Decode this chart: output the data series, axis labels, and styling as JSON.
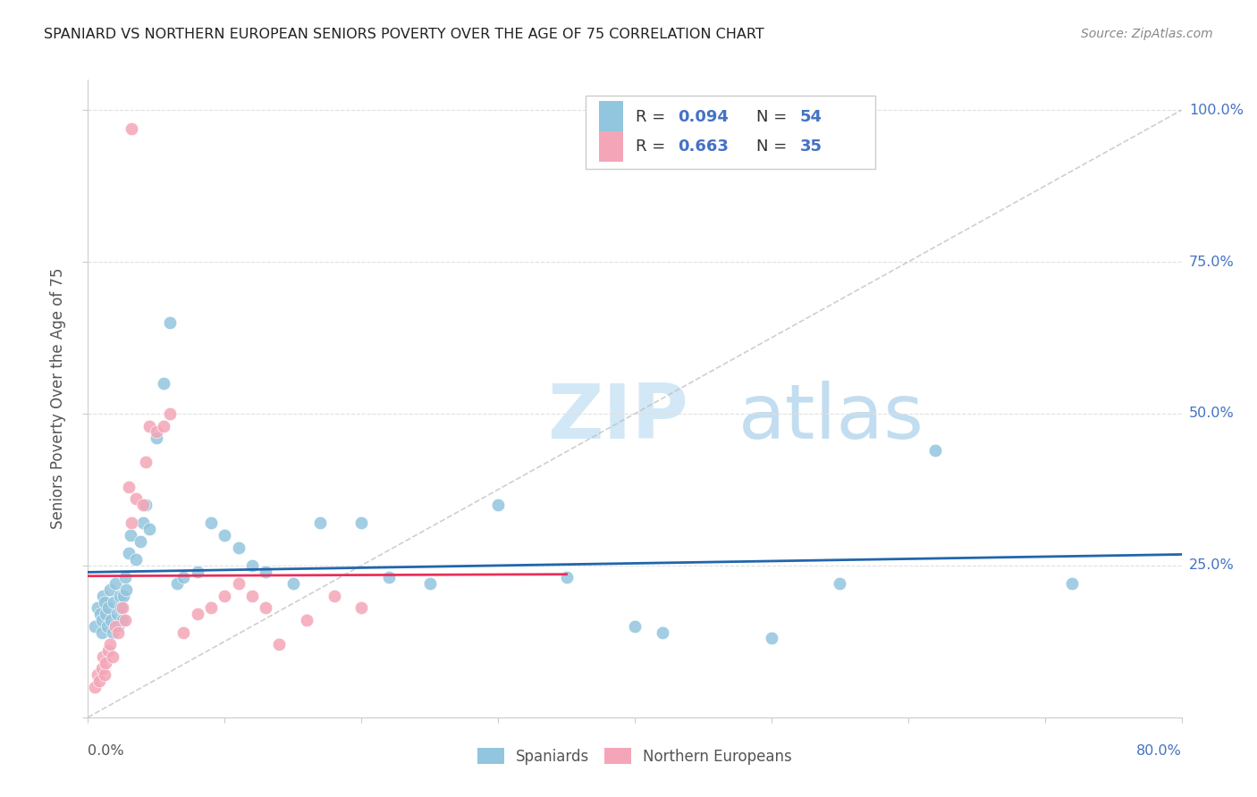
{
  "title": "SPANIARD VS NORTHERN EUROPEAN SENIORS POVERTY OVER THE AGE OF 75 CORRELATION CHART",
  "source": "Source: ZipAtlas.com",
  "ylabel": "Seniors Poverty Over the Age of 75",
  "legend_label_blue": "Spaniards",
  "legend_label_pink": "Northern Europeans",
  "blue_color": "#92c5de",
  "pink_color": "#f4a6b8",
  "blue_line_color": "#2166ac",
  "pink_line_color": "#e8305a",
  "ref_line_color": "#bbbbbb",
  "grid_color": "#e0e0e0",
  "right_label_color": "#4472c4",
  "title_color": "#222222",
  "source_color": "#888888",
  "ylabel_color": "#555555",
  "xlim": [
    0.0,
    0.8
  ],
  "ylim": [
    0.0,
    1.05
  ],
  "blue_x": [
    0.005,
    0.007,
    0.009,
    0.01,
    0.01,
    0.011,
    0.012,
    0.013,
    0.014,
    0.015,
    0.016,
    0.017,
    0.018,
    0.019,
    0.02,
    0.021,
    0.022,
    0.023,
    0.024,
    0.025,
    0.026,
    0.027,
    0.028,
    0.03,
    0.031,
    0.035,
    0.038,
    0.04,
    0.042,
    0.045,
    0.05,
    0.055,
    0.06,
    0.065,
    0.07,
    0.08,
    0.09,
    0.1,
    0.11,
    0.12,
    0.13,
    0.15,
    0.17,
    0.2,
    0.22,
    0.25,
    0.3,
    0.35,
    0.4,
    0.42,
    0.5,
    0.55,
    0.62,
    0.72
  ],
  "blue_y": [
    0.15,
    0.18,
    0.17,
    0.14,
    0.16,
    0.2,
    0.19,
    0.17,
    0.15,
    0.18,
    0.21,
    0.16,
    0.14,
    0.19,
    0.22,
    0.17,
    0.15,
    0.2,
    0.18,
    0.16,
    0.2,
    0.23,
    0.21,
    0.27,
    0.3,
    0.26,
    0.29,
    0.32,
    0.35,
    0.31,
    0.46,
    0.55,
    0.65,
    0.22,
    0.23,
    0.24,
    0.32,
    0.3,
    0.28,
    0.25,
    0.24,
    0.22,
    0.32,
    0.32,
    0.23,
    0.22,
    0.35,
    0.23,
    0.15,
    0.14,
    0.13,
    0.22,
    0.44,
    0.22
  ],
  "pink_x": [
    0.005,
    0.007,
    0.008,
    0.01,
    0.011,
    0.012,
    0.013,
    0.015,
    0.016,
    0.018,
    0.02,
    0.022,
    0.025,
    0.027,
    0.03,
    0.032,
    0.035,
    0.04,
    0.042,
    0.045,
    0.05,
    0.055,
    0.06,
    0.07,
    0.08,
    0.09,
    0.1,
    0.11,
    0.12,
    0.13,
    0.14,
    0.16,
    0.18,
    0.2,
    0.032
  ],
  "pink_y": [
    0.05,
    0.07,
    0.06,
    0.08,
    0.1,
    0.07,
    0.09,
    0.11,
    0.12,
    0.1,
    0.15,
    0.14,
    0.18,
    0.16,
    0.38,
    0.32,
    0.36,
    0.35,
    0.42,
    0.48,
    0.47,
    0.48,
    0.5,
    0.14,
    0.17,
    0.18,
    0.2,
    0.22,
    0.2,
    0.18,
    0.12,
    0.16,
    0.2,
    0.18,
    0.97
  ],
  "blue_trend_x": [
    0.0,
    0.8
  ],
  "pink_trend_x": [
    0.0,
    0.35
  ],
  "ref_line_x": [
    0.0,
    0.8
  ],
  "ref_line_y": [
    0.0,
    1.0
  ],
  "ytick_positions": [
    0.0,
    0.25,
    0.5,
    0.75,
    1.0
  ],
  "ytick_right_labels": [
    "",
    "25.0%",
    "50.0%",
    "75.0%",
    "100.0%"
  ],
  "xtick_positions": [
    0.0,
    0.1,
    0.2,
    0.3,
    0.4,
    0.5,
    0.6,
    0.7,
    0.8
  ]
}
